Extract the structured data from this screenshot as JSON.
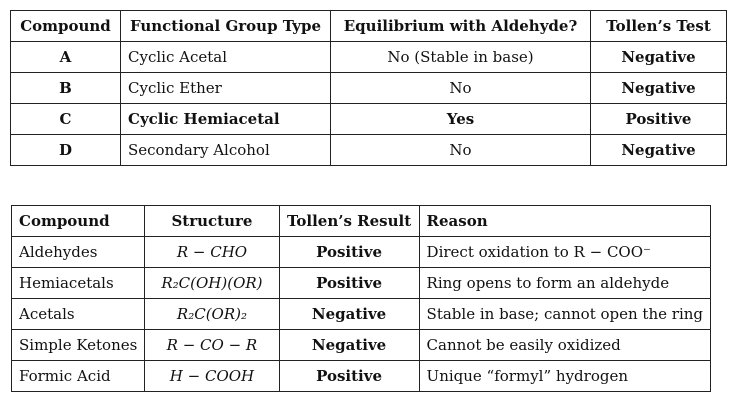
{
  "table1": {
    "headers": [
      "Compound",
      "Functional Group Type",
      "Equilibrium with Aldehyde?",
      "Tollen’s Test"
    ],
    "rows": [
      [
        "A",
        "Cyclic Acetal",
        "No (Stable in base)",
        "Negative"
      ],
      [
        "B",
        "Cyclic Ether",
        "No",
        "Negative"
      ],
      [
        "C",
        "Cyclic Hemiacetal",
        "Yes",
        "Positive"
      ],
      [
        "D",
        "Secondary Alcohol",
        "No",
        "Negative"
      ]
    ]
  },
  "table2": {
    "headers": [
      "Compound",
      "Structure",
      "Tollen’s Result",
      "Reason"
    ],
    "rows": [
      [
        "Aldehydes",
        "R − CHO",
        "Positive",
        "Direct oxidation to R − COO⁻"
      ],
      [
        "Hemiacetals",
        "R₂C(OH)(OR)",
        "Positive",
        "Ring opens to form an aldehyde"
      ],
      [
        "Acetals",
        "R₂C(OR)₂",
        "Negative",
        "Stable in base; cannot open the ring"
      ],
      [
        "Simple Ketones",
        "R − CO − R",
        "Negative",
        "Cannot be easily oxidized"
      ],
      [
        "Formic Acid",
        "H − COOH",
        "Positive",
        "Unique “formyl” hydrogen"
      ]
    ]
  }
}
